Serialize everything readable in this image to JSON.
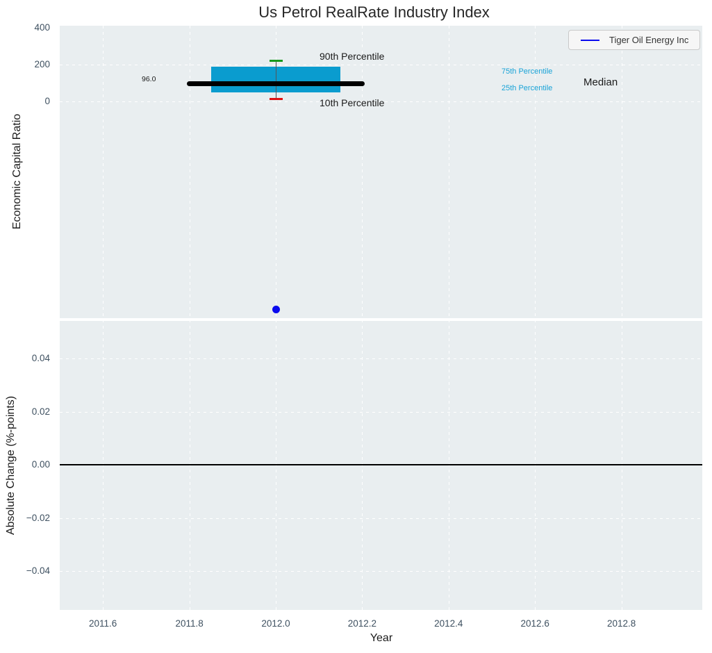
{
  "title": "Us Petrol RealRate Industry Index",
  "legend": {
    "label": "Tiger Oil Energy Inc"
  },
  "annotations": {
    "p90_label": "90th Percentile",
    "p10_label": "10th Percentile",
    "p75_label": "75th Percentile",
    "p25_label": "25th Percentile",
    "median_label": "Median",
    "median_value_label": "96.0"
  },
  "colors": {
    "box": "#0a9ccf",
    "median": "#000000",
    "whisker": "#555555",
    "cap_high": "#189a1d",
    "cap_low": "#e01111",
    "point": "#0a0aee",
    "percentile_text": "#19a3d7",
    "plot_background": "#e9eef0",
    "tick_text": "#3e5060"
  },
  "chart_data": [
    {
      "type": "boxplot",
      "title": "Us Petrol RealRate Industry Index",
      "ylabel": "Economic Capital Ratio",
      "x": 2012.0,
      "box": {
        "p10": 15,
        "p25": 50,
        "median": 96,
        "p75": 190,
        "p90": 220
      },
      "box_halfwidth": 0.15,
      "median_line_halfwidth": 0.205,
      "company_point": {
        "name": "Tiger Oil Energy Inc",
        "x": 2012.0,
        "y": -1130
      },
      "xlim": [
        2011.5,
        2013.0
      ],
      "ylim": [
        -1180,
        410
      ],
      "yticks": [
        {
          "v": 0,
          "label": "0"
        },
        {
          "v": 200,
          "label": "200"
        },
        {
          "v": 400,
          "label": "400"
        }
      ],
      "grid": true,
      "legend_position": "upper right"
    },
    {
      "type": "line",
      "ylabel": "Absolute Change (%-points)",
      "xlabel": "Year",
      "zero_line": 0.0,
      "series": [],
      "xlim": [
        2011.5,
        2013.0
      ],
      "ylim": [
        -0.055,
        0.054
      ],
      "xticks": [
        {
          "v": 2011.6,
          "label": "2011.6"
        },
        {
          "v": 2011.8,
          "label": "2011.8"
        },
        {
          "v": 2012.0,
          "label": "2012.0"
        },
        {
          "v": 2012.2,
          "label": "2012.2"
        },
        {
          "v": 2012.4,
          "label": "2012.4"
        },
        {
          "v": 2012.6,
          "label": "2012.6"
        },
        {
          "v": 2012.8,
          "label": "2012.8"
        }
      ],
      "yticks": [
        {
          "v": -0.04,
          "label": "−0.04"
        },
        {
          "v": -0.02,
          "label": "−0.02"
        },
        {
          "v": 0.0,
          "label": "0.00"
        },
        {
          "v": 0.02,
          "label": "0.02"
        },
        {
          "v": 0.04,
          "label": "0.04"
        }
      ],
      "grid": true
    }
  ]
}
